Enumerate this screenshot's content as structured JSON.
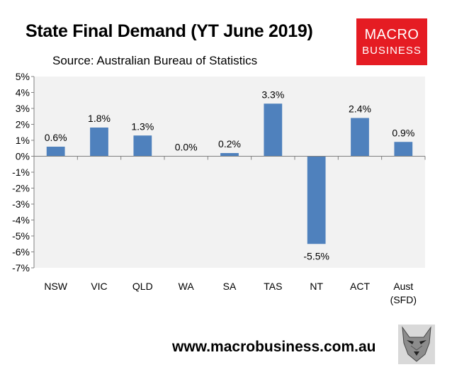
{
  "header": {
    "title": "State Final Demand (YT June 2019)",
    "subtitle": "Source: Australian Bureau of Statistics"
  },
  "logo": {
    "line1": "MACRO",
    "line2": "BUSINESS",
    "color": "#e51c23"
  },
  "footer": {
    "url": "www.macrobusiness.com.au",
    "mascot_icon": "wolf-head-icon"
  },
  "chart_data": {
    "type": "bar",
    "categories": [
      "NSW",
      "VIC",
      "QLD",
      "WA",
      "SA",
      "TAS",
      "NT",
      "ACT",
      "Aust (SFD)"
    ],
    "values": [
      0.6,
      1.8,
      1.3,
      0.0,
      0.2,
      3.3,
      -5.5,
      2.4,
      0.9
    ],
    "data_labels": [
      "0.6%",
      "1.8%",
      "1.3%",
      "0.0%",
      "0.2%",
      "3.3%",
      "-5.5%",
      "2.4%",
      "0.9%"
    ],
    "ylim": [
      -7,
      5
    ],
    "yticks": [
      5,
      4,
      3,
      2,
      1,
      0,
      -1,
      -2,
      -3,
      -4,
      -5,
      -6,
      -7
    ],
    "ytick_labels": [
      "5%",
      "4%",
      "3%",
      "2%",
      "1%",
      "0%",
      "-1%",
      "-2%",
      "-3%",
      "-4%",
      "-5%",
      "-6%",
      "-7%"
    ],
    "bar_color": "#4f81bd",
    "plot_background": "#f2f2f2",
    "grid": false,
    "legend": "none"
  }
}
